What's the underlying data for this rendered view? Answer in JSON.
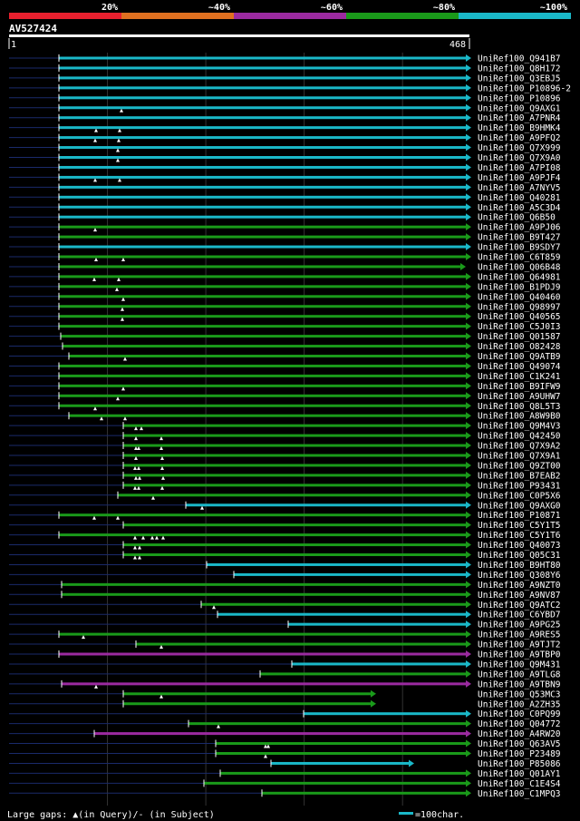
{
  "chart_data": {
    "type": "alignment-overview",
    "title": "AV527424",
    "query_length": 468,
    "axis_start_label": "1",
    "axis_end_label": "468",
    "identity_legend": [
      {
        "label": "20%",
        "color": "#e8202e"
      },
      {
        "label": "~40%",
        "color": "#e07020"
      },
      {
        "label": "~60%",
        "color": "#9b2aa0"
      },
      {
        "label": "~80%",
        "color": "#1a9a1a"
      },
      {
        "label": "~100%",
        "color": "#1ab8c8"
      }
    ],
    "footer": {
      "gaps_prefix": "Large gaps: ",
      "gaps_query_suffix": "(in Query)/- (in Subject)",
      "scale_label": "=100char."
    },
    "hits": [
      {
        "name": "UniRef100_Q941B7",
        "color": "cyan",
        "start": 65,
        "end": 518,
        "pre": 10,
        "marks": []
      },
      {
        "name": "UniRef100_Q8H172",
        "color": "cyan",
        "start": 65,
        "end": 518,
        "pre": 10,
        "marks": []
      },
      {
        "name": "UniRef100_Q3EBJ5",
        "color": "cyan",
        "start": 65,
        "end": 518,
        "pre": 10,
        "marks": []
      },
      {
        "name": "UniRef100_P10896-2",
        "color": "cyan",
        "start": 65,
        "end": 518,
        "pre": 10,
        "marks": []
      },
      {
        "name": "UniRef100_P10896",
        "color": "cyan",
        "start": 65,
        "end": 518,
        "pre": 10,
        "marks": []
      },
      {
        "name": "UniRef100_Q9AXG1",
        "color": "cyan",
        "start": 65,
        "end": 518,
        "pre": 10,
        "marks": [
          134
        ]
      },
      {
        "name": "UniRef100_A7PNR4",
        "color": "cyan",
        "start": 65,
        "end": 518,
        "pre": 10,
        "marks": []
      },
      {
        "name": "UniRef100_B9HMK4",
        "color": "cyan",
        "start": 65,
        "end": 518,
        "pre": 10,
        "marks": [
          106,
          132
        ]
      },
      {
        "name": "UniRef100_A9PFQ2",
        "color": "cyan",
        "start": 65,
        "end": 518,
        "pre": 10,
        "marks": [
          105,
          131
        ]
      },
      {
        "name": "UniRef100_Q7X999",
        "color": "cyan",
        "start": 65,
        "end": 518,
        "pre": 10,
        "marks": [
          130
        ]
      },
      {
        "name": "UniRef100_Q7X9A0",
        "color": "cyan",
        "start": 65,
        "end": 518,
        "pre": 10,
        "marks": [
          130
        ]
      },
      {
        "name": "UniRef100_A7PI08",
        "color": "cyan",
        "start": 65,
        "end": 518,
        "pre": 10,
        "marks": []
      },
      {
        "name": "UniRef100_A9PJF4",
        "color": "cyan",
        "start": 65,
        "end": 518,
        "pre": 10,
        "marks": [
          105,
          132
        ]
      },
      {
        "name": "UniRef100_A7NYV5",
        "color": "cyan",
        "start": 65,
        "end": 518,
        "pre": 10,
        "marks": []
      },
      {
        "name": "UniRef100_Q40281",
        "color": "cyan",
        "start": 65,
        "end": 518,
        "pre": 10,
        "marks": []
      },
      {
        "name": "UniRef100_A5C3D4",
        "color": "cyan",
        "start": 65,
        "end": 518,
        "pre": 10,
        "marks": []
      },
      {
        "name": "UniRef100_Q6B50",
        "color": "cyan",
        "start": 65,
        "end": 518,
        "pre": 10,
        "marks": []
      },
      {
        "name": "UniRef100_A9PJ06",
        "color": "green",
        "start": 65,
        "end": 518,
        "pre": 10,
        "marks": [
          105
        ]
      },
      {
        "name": "UniRef100_B9T427",
        "color": "green",
        "start": 65,
        "end": 518,
        "pre": 10,
        "marks": []
      },
      {
        "name": "UniRef100_B9SDY7",
        "color": "cyan",
        "start": 65,
        "end": 518,
        "pre": 10,
        "marks": []
      },
      {
        "name": "UniRef100_C6T859",
        "color": "green",
        "start": 65,
        "end": 518,
        "pre": 10,
        "marks": [
          106,
          136
        ]
      },
      {
        "name": "UniRef100_Q06B48",
        "color": "green",
        "start": 65,
        "end": 512,
        "pre": 10,
        "marks": []
      },
      {
        "name": "UniRef100_Q64981",
        "color": "green",
        "start": 65,
        "end": 518,
        "pre": 10,
        "marks": [
          104,
          131
        ]
      },
      {
        "name": "UniRef100_B1PDJ9",
        "color": "green",
        "start": 65,
        "end": 518,
        "pre": 10,
        "marks": [
          129
        ]
      },
      {
        "name": "UniRef100_Q40460",
        "color": "green",
        "start": 65,
        "end": 518,
        "pre": 10,
        "marks": [
          136
        ]
      },
      {
        "name": "UniRef100_Q98997",
        "color": "green",
        "start": 65,
        "end": 518,
        "pre": 10,
        "marks": [
          135
        ]
      },
      {
        "name": "UniRef100_Q40565",
        "color": "green",
        "start": 65,
        "end": 518,
        "pre": 10,
        "marks": [
          135
        ]
      },
      {
        "name": "UniRef100_C5J0I3",
        "color": "green",
        "start": 65,
        "end": 518,
        "pre": 10,
        "marks": []
      },
      {
        "name": "UniRef100_Q01587",
        "color": "green",
        "start": 67,
        "end": 518,
        "pre": 10,
        "marks": []
      },
      {
        "name": "UniRef100_O82428",
        "color": "green",
        "start": 69,
        "end": 518,
        "pre": 10,
        "marks": []
      },
      {
        "name": "UniRef100_Q9ATB9",
        "color": "green",
        "start": 76,
        "end": 518,
        "pre": 10,
        "marks": [
          138
        ]
      },
      {
        "name": "UniRef100_Q49074",
        "color": "green",
        "start": 65,
        "end": 518,
        "pre": 10,
        "marks": []
      },
      {
        "name": "UniRef100_C1K241",
        "color": "green",
        "start": 65,
        "end": 518,
        "pre": 10,
        "marks": []
      },
      {
        "name": "UniRef100_B9IFW9",
        "color": "green",
        "start": 65,
        "end": 518,
        "pre": 10,
        "marks": [
          136
        ]
      },
      {
        "name": "UniRef100_A9UHW7",
        "color": "green",
        "start": 65,
        "end": 518,
        "pre": 10,
        "marks": [
          130
        ]
      },
      {
        "name": "UniRef100_Q8L5T3",
        "color": "green",
        "start": 65,
        "end": 518,
        "pre": 10,
        "marks": [
          105
        ]
      },
      {
        "name": "UniRef100_A8W9B0",
        "color": "green",
        "start": 76,
        "end": 518,
        "pre": 10,
        "marks": [
          112,
          138
        ]
      },
      {
        "name": "UniRef100_Q9M4V3",
        "color": "green",
        "start": 136,
        "end": 518,
        "pre": 10,
        "marks": [
          150,
          156
        ]
      },
      {
        "name": "UniRef100_Q42450",
        "color": "green",
        "start": 136,
        "end": 518,
        "pre": 10,
        "marks": [
          150,
          178
        ]
      },
      {
        "name": "UniRef100_Q7X9A2",
        "color": "green",
        "start": 136,
        "end": 518,
        "pre": 10,
        "marks": [
          150,
          153,
          178
        ]
      },
      {
        "name": "UniRef100_Q7X9A1",
        "color": "green",
        "start": 136,
        "end": 518,
        "pre": 10,
        "marks": [
          150,
          179
        ]
      },
      {
        "name": "UniRef100_Q9ZT00",
        "color": "green",
        "start": 136,
        "end": 518,
        "pre": 10,
        "marks": [
          149,
          153,
          179
        ]
      },
      {
        "name": "UniRef100_B7EAB2",
        "color": "green",
        "start": 136,
        "end": 518,
        "pre": 10,
        "marks": [
          150,
          154,
          180
        ]
      },
      {
        "name": "UniRef100_P93431",
        "color": "green",
        "start": 136,
        "end": 518,
        "pre": 10,
        "marks": [
          149,
          153,
          179
        ]
      },
      {
        "name": "UniRef100_C0P5X6",
        "color": "green",
        "start": 130,
        "end": 518,
        "pre": 10,
        "marks": [
          169
        ]
      },
      {
        "name": "UniRef100_Q9AXG0",
        "color": "cyan",
        "start": 205,
        "end": 518,
        "pre": 10,
        "marks": [
          223
        ]
      },
      {
        "name": "UniRef100_P10871",
        "color": "green",
        "start": 65,
        "end": 518,
        "pre": 10,
        "marks": [
          104,
          130
        ]
      },
      {
        "name": "UniRef100_C5Y1T5",
        "color": "green",
        "start": 136,
        "end": 518,
        "pre": 10,
        "marks": []
      },
      {
        "name": "UniRef100_C5Y1T6",
        "color": "green",
        "start": 65,
        "end": 518,
        "pre": 10,
        "marks": [
          149,
          158,
          168,
          173,
          180
        ]
      },
      {
        "name": "UniRef100_Q40073",
        "color": "green",
        "start": 136,
        "end": 518,
        "pre": 10,
        "marks": [
          149,
          154
        ]
      },
      {
        "name": "UniRef100_Q05C31",
        "color": "green",
        "start": 136,
        "end": 518,
        "pre": 10,
        "marks": [
          149,
          154
        ]
      },
      {
        "name": "UniRef100_B9HT80",
        "color": "cyan",
        "start": 228,
        "end": 518,
        "pre": 10,
        "marks": []
      },
      {
        "name": "UniRef100_Q308Y6",
        "color": "cyan",
        "start": 258,
        "end": 518,
        "pre": 10,
        "marks": []
      },
      {
        "name": "UniRef100_A9NZT0",
        "color": "green",
        "start": 68,
        "end": 518,
        "pre": 10,
        "marks": []
      },
      {
        "name": "UniRef100_A9NV87",
        "color": "green",
        "start": 68,
        "end": 518,
        "pre": 10,
        "marks": []
      },
      {
        "name": "UniRef100_Q9ATC2",
        "color": "green",
        "start": 222,
        "end": 518,
        "pre": 10,
        "marks": [
          236
        ]
      },
      {
        "name": "UniRef100_C6YBD7",
        "color": "cyan",
        "start": 240,
        "end": 518,
        "pre": 10,
        "marks": []
      },
      {
        "name": "UniRef100_A9PG25",
        "color": "cyan",
        "start": 318,
        "end": 518,
        "pre": 10,
        "marks": []
      },
      {
        "name": "UniRef100_A9RES5",
        "color": "green",
        "start": 65,
        "end": 518,
        "pre": 10,
        "marks": [
          92
        ]
      },
      {
        "name": "UniRef100_A9TJT2",
        "color": "green",
        "start": 150,
        "end": 518,
        "pre": 10,
        "marks": [
          178
        ]
      },
      {
        "name": "UniRef100_A9TBP0",
        "color": "purple",
        "start": 65,
        "end": 518,
        "pre": 10,
        "marks": []
      },
      {
        "name": "UniRef100_Q9M431",
        "color": "cyan",
        "start": 322,
        "end": 518,
        "pre": 10,
        "marks": []
      },
      {
        "name": "UniRef100_A9TLG8",
        "color": "green",
        "start": 287,
        "end": 518,
        "pre": 10,
        "marks": []
      },
      {
        "name": "UniRef100_A9TBN9",
        "color": "purple",
        "start": 68,
        "end": 518,
        "pre": 10,
        "marks": [
          106
        ]
      },
      {
        "name": "UniRef100_Q53MC3",
        "color": "green",
        "start": 136,
        "end": 413,
        "pre": 10,
        "marks": [
          178
        ]
      },
      {
        "name": "UniRef100_A2ZH35",
        "color": "green",
        "start": 136,
        "end": 413,
        "pre": 10,
        "marks": []
      },
      {
        "name": "UniRef100_C0PQ99",
        "color": "cyan",
        "start": 335,
        "end": 518,
        "pre": 10,
        "marks": []
      },
      {
        "name": "UniRef100_Q04772",
        "color": "green",
        "start": 208,
        "end": 518,
        "pre": 10,
        "marks": [
          241
        ]
      },
      {
        "name": "UniRef100_A4RW20",
        "color": "purple",
        "start": 104,
        "end": 518,
        "pre": 10,
        "marks": []
      },
      {
        "name": "UniRef100_Q63AV5",
        "color": "green",
        "start": 238,
        "end": 518,
        "pre": 10,
        "marks": [
          293,
          296
        ]
      },
      {
        "name": "UniRef100_P23489",
        "color": "green",
        "start": 238,
        "end": 518,
        "pre": 10,
        "marks": [
          293
        ]
      },
      {
        "name": "UniRef100_P85086",
        "color": "cyan",
        "start": 299,
        "end": 455,
        "pre": 10,
        "marks": []
      },
      {
        "name": "UniRef100_Q01AY1",
        "color": "green",
        "start": 243,
        "end": 518,
        "pre": 10,
        "marks": []
      },
      {
        "name": "UniRef100_C1E4S4",
        "color": "green",
        "start": 225,
        "end": 518,
        "pre": 10,
        "marks": []
      },
      {
        "name": "UniRef100_C1MPQ3",
        "color": "green",
        "start": 289,
        "end": 518,
        "pre": 10,
        "marks": []
      }
    ]
  }
}
